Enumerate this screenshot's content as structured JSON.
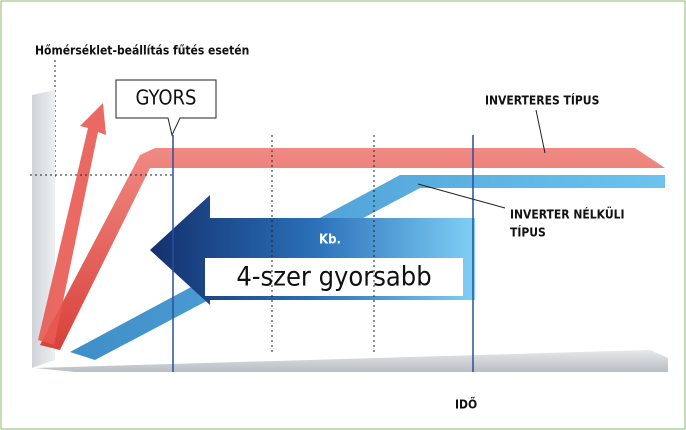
{
  "header": {
    "title": "Hőmérséklet-beállítás fűtés esetén"
  },
  "labels": {
    "fast": "GYORS",
    "inverter": "INVERTERES TÍPUS",
    "non_inverter": [
      "INVERTER NÉLKÜLI",
      "TÍPUS"
    ],
    "approx": "Kb.",
    "speed": "4-szer gyorsabb",
    "time": "IDŐ"
  }
}
